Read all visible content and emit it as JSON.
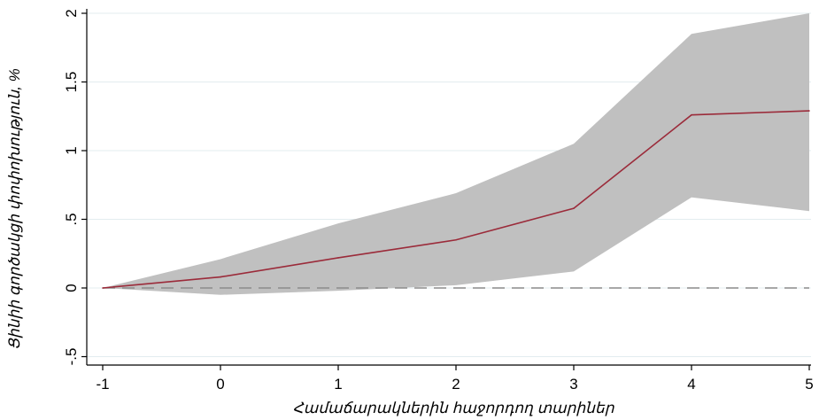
{
  "chart_data": {
    "type": "line",
    "title": "",
    "xlabel": "Համաճարակներին հաջորդող տարիներ",
    "ylabel": "Ցինիի գործակցի փոփոխություն, %",
    "x": [
      -1,
      0,
      1,
      2,
      3,
      4,
      5
    ],
    "xlim": [
      -1,
      5
    ],
    "ylim": [
      -0.55,
      2.0
    ],
    "xticks": [
      -1,
      0,
      1,
      2,
      3,
      4,
      5
    ],
    "yticks": [
      -0.5,
      0,
      0.5,
      1,
      1.5,
      2
    ],
    "xtick_labels": [
      "-1",
      "0",
      "1",
      "2",
      "3",
      "4",
      "5"
    ],
    "ytick_labels": [
      "-.5",
      "0",
      ".5",
      "1",
      "1.5",
      "2"
    ],
    "grid": true,
    "series": [
      {
        "role": "estimate",
        "values": [
          0,
          0.08,
          0.22,
          0.35,
          0.58,
          1.26,
          1.29
        ],
        "color": "#9b2b3a"
      }
    ],
    "confidence_band": {
      "upper": [
        0,
        0.21,
        0.47,
        0.69,
        1.05,
        1.85,
        2.0
      ],
      "lower": [
        0,
        -0.05,
        -0.02,
        0.02,
        0.12,
        0.66,
        0.56
      ],
      "color": "#c0c0c0"
    },
    "reference_line": {
      "y": 0,
      "style": "dashed",
      "color": "#8c8c8c"
    }
  }
}
